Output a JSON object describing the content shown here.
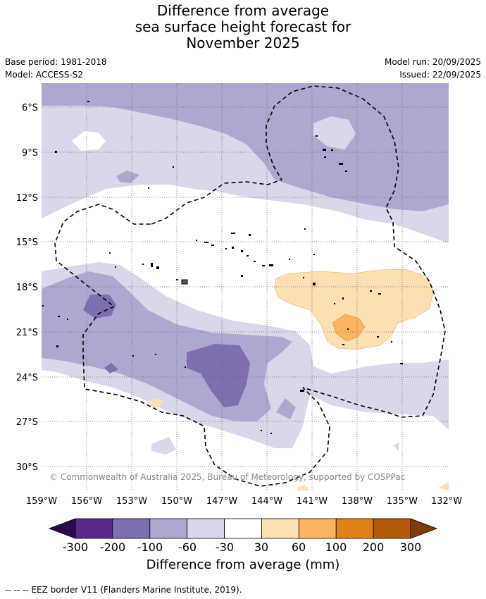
{
  "header": {
    "title_lines": [
      "Difference from average",
      "sea surface height forecast for",
      "November 2025"
    ],
    "base_period": "Base period: 1981-2018",
    "model": "Model: ACCESS-S2",
    "model_run": "Model run: 20/09/2025",
    "issued": "Issued: 22/09/2025"
  },
  "map": {
    "lat_labels": [
      "6°S",
      "9°S",
      "12°S",
      "15°S",
      "18°S",
      "21°S",
      "24°S",
      "27°S",
      "30°S"
    ],
    "lon_labels": [
      "159°W",
      "156°W",
      "153°W",
      "150°W",
      "147°W",
      "144°W",
      "141°W",
      "138°W",
      "135°W",
      "132°W"
    ],
    "copyright": "© Commonwealth of Australia 2025, Bureau of Meteorology, supported by COSPPac"
  },
  "legend": {
    "ticks": [
      "-300",
      "-200",
      "-100",
      "-60",
      "-30",
      "30",
      "60",
      "100",
      "200",
      "300"
    ],
    "colors": [
      "#2d0a4f",
      "#5a2a8a",
      "#7f6eb0",
      "#aea8d0",
      "#d8d8ea",
      "#ffffff",
      "#fddfb4",
      "#fbb560",
      "#e0821a",
      "#b35a0a",
      "#7f3c0a"
    ],
    "title": "Difference from average (mm)"
  },
  "footer": {
    "eez_note": "--  --  -- EEZ border V11 (Flanders Marine Institute, 2019)."
  }
}
